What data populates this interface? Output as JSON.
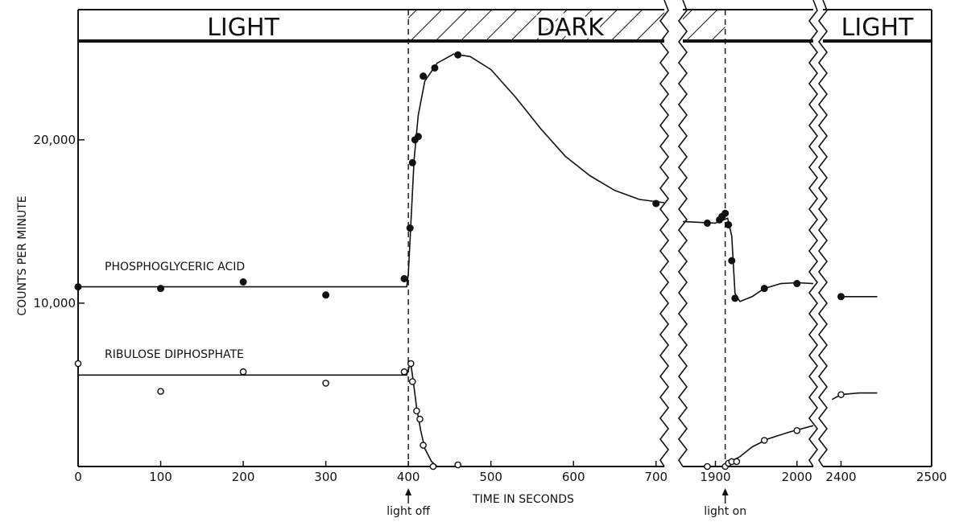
{
  "chart_data": {
    "type": "scatter",
    "title": "",
    "xlabel": "TIME IN SECONDS",
    "ylabel": "COUNTS PER MINUTE",
    "grid": false,
    "ylim": [
      0,
      26000
    ],
    "y_ticks": [
      {
        "value": 10000,
        "label": "10,000"
      },
      {
        "value": 20000,
        "label": "20,000"
      }
    ],
    "panels": [
      {
        "xlim": [
          0,
          710
        ],
        "x_ticks": [
          {
            "value": 0,
            "label": "0"
          },
          {
            "value": 100,
            "label": "100"
          },
          {
            "value": 200,
            "label": "200"
          },
          {
            "value": 300,
            "label": "300"
          },
          {
            "value": 400,
            "label": "400"
          },
          {
            "value": 500,
            "label": "500"
          },
          {
            "value": 600,
            "label": "600"
          },
          {
            "value": 700,
            "label": "700"
          }
        ]
      },
      {
        "xlim": [
          1860,
          2020
        ],
        "x_ticks": [
          {
            "value": 1900,
            "label": "1900"
          },
          {
            "value": 2000,
            "label": "2000"
          }
        ]
      },
      {
        "xlim": [
          2380,
          2500
        ],
        "x_ticks": [
          {
            "value": 2400,
            "label": "2400"
          },
          {
            "value": 2500,
            "label": "2500"
          }
        ]
      }
    ],
    "bands": [
      {
        "label": "LIGHT",
        "start": 0,
        "end": 400,
        "hatched": false
      },
      {
        "label": "DARK",
        "start": 400,
        "end": 1912,
        "hatched": true
      },
      {
        "label": "",
        "start": 1912,
        "end": 2020,
        "hatched": false
      },
      {
        "label": "LIGHT",
        "start": 2380,
        "end": 2500,
        "hatched": false
      }
    ],
    "annotations": [
      {
        "text": "light off",
        "x": 400
      },
      {
        "text": "light on",
        "x": 1912
      }
    ],
    "series": [
      {
        "name": "PHOSPHOGLYCERIC ACID",
        "marker": "filled",
        "points": [
          [
            0,
            11000
          ],
          [
            100,
            10900
          ],
          [
            200,
            11300
          ],
          [
            300,
            10500
          ],
          [
            395,
            11500
          ],
          [
            402,
            14600
          ],
          [
            405,
            18600
          ],
          [
            408,
            20000
          ],
          [
            412,
            20200
          ],
          [
            418,
            23900
          ],
          [
            432,
            24400
          ],
          [
            460,
            25200
          ],
          [
            700,
            16100
          ],
          [
            1890,
            14900
          ],
          [
            1905,
            15100
          ],
          [
            1908,
            15300
          ],
          [
            1912,
            15500
          ],
          [
            1916,
            14800
          ],
          [
            1920,
            12600
          ],
          [
            1924,
            10300
          ],
          [
            1960,
            10900
          ],
          [
            2000,
            11200
          ],
          [
            2400,
            10400
          ]
        ],
        "curve": [
          [
            0,
            11000
          ],
          [
            398,
            11000
          ],
          [
            400,
            11800
          ],
          [
            403,
            14800
          ],
          [
            407,
            18800
          ],
          [
            412,
            21500
          ],
          [
            420,
            23600
          ],
          [
            435,
            24700
          ],
          [
            455,
            25250
          ],
          [
            475,
            25100
          ],
          [
            500,
            24300
          ],
          [
            530,
            22600
          ],
          [
            560,
            20700
          ],
          [
            590,
            19000
          ],
          [
            620,
            17800
          ],
          [
            650,
            16900
          ],
          [
            680,
            16350
          ],
          [
            710,
            16150
          ],
          null,
          [
            1860,
            15000
          ],
          [
            1900,
            14900
          ],
          [
            1910,
            15100
          ],
          [
            1915,
            15200
          ],
          [
            1920,
            14100
          ],
          [
            1924,
            10600
          ],
          [
            1930,
            10100
          ],
          [
            1945,
            10400
          ],
          [
            1960,
            10900
          ],
          [
            1980,
            11200
          ],
          [
            2000,
            11250
          ],
          [
            2020,
            11200
          ],
          null,
          [
            2400,
            10400
          ],
          [
            2440,
            10400
          ]
        ]
      },
      {
        "name": "RIBULOSE DIPHOSPHATE",
        "marker": "open",
        "points": [
          [
            0,
            6300
          ],
          [
            100,
            4600
          ],
          [
            200,
            5800
          ],
          [
            300,
            5100
          ],
          [
            395,
            5800
          ],
          [
            403,
            6300
          ],
          [
            405,
            5200
          ],
          [
            410,
            3400
          ],
          [
            414,
            2900
          ],
          [
            418,
            1300
          ],
          [
            430,
            0
          ],
          [
            460,
            100
          ],
          [
            1890,
            0
          ],
          [
            1912,
            0
          ],
          [
            1916,
            200
          ],
          [
            1920,
            300
          ],
          [
            1926,
            300
          ],
          [
            1960,
            1600
          ],
          [
            2000,
            2200
          ],
          [
            2400,
            4400
          ]
        ],
        "curve": [
          [
            0,
            5600
          ],
          [
            398,
            5600
          ],
          [
            401,
            6100
          ],
          [
            403,
            6300
          ],
          [
            406,
            5200
          ],
          [
            410,
            3600
          ],
          [
            415,
            2200
          ],
          [
            420,
            1100
          ],
          [
            428,
            300
          ],
          [
            435,
            0
          ],
          null,
          [
            1912,
            0
          ],
          [
            1918,
            300
          ],
          [
            1930,
            600
          ],
          [
            1945,
            1200
          ],
          [
            1965,
            1700
          ],
          [
            1990,
            2100
          ],
          [
            2020,
            2500
          ],
          null,
          [
            2390,
            4100
          ],
          [
            2400,
            4400
          ],
          [
            2420,
            4500
          ],
          [
            2440,
            4500
          ]
        ]
      }
    ]
  }
}
